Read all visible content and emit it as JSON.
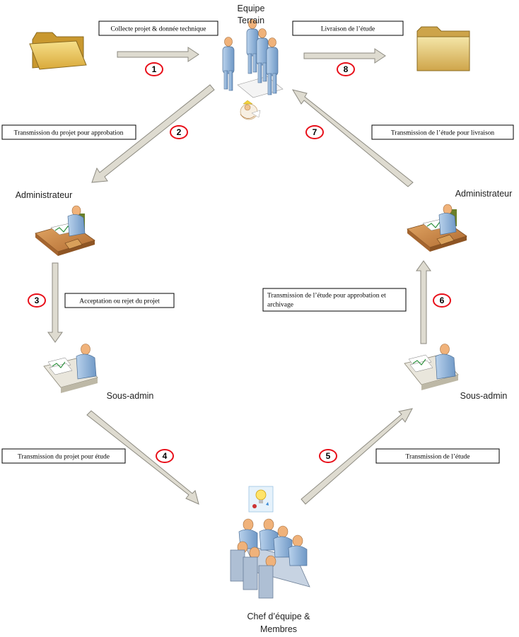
{
  "nodes": {
    "equipe_terrain": [
      "Equipe",
      "Terrain"
    ],
    "admin_left": "Administrateur",
    "admin_right": "Administrateur",
    "sous_admin_left": "Sous-admin",
    "sous_admin_right": "Sous-admin",
    "chef_equipe": [
      "Chef d’équipe &",
      "Membres"
    ]
  },
  "steps": {
    "s1": {
      "number": "1",
      "label": "Collecte projet & donnée technique"
    },
    "s2": {
      "number": "2",
      "label": "Transmission du projet pour approbation"
    },
    "s3": {
      "number": "3",
      "label": "Acceptation ou rejet du projet"
    },
    "s4": {
      "number": "4",
      "label": "Transmission du projet pour étude"
    },
    "s5": {
      "number": "5",
      "label": "Transmission de l’étude"
    },
    "s6": {
      "number": "6",
      "label": [
        "Transmission de l’étude pour approbation et",
        "archivage"
      ]
    },
    "s7": {
      "number": "7",
      "label": "Transmission de l’étude pour livraison"
    },
    "s8": {
      "number": "8",
      "label": "Livraison de l’étude"
    }
  },
  "colors": {
    "arrow_fill": "#dedbd0",
    "arrow_stroke": "#8c8a80",
    "badge_stroke": "#e8101a",
    "folder_fill": "#e9c95f",
    "person_fill": "#8fb3d9",
    "head_fill": "#f0b27a",
    "desk_fill": "#c9874a"
  }
}
